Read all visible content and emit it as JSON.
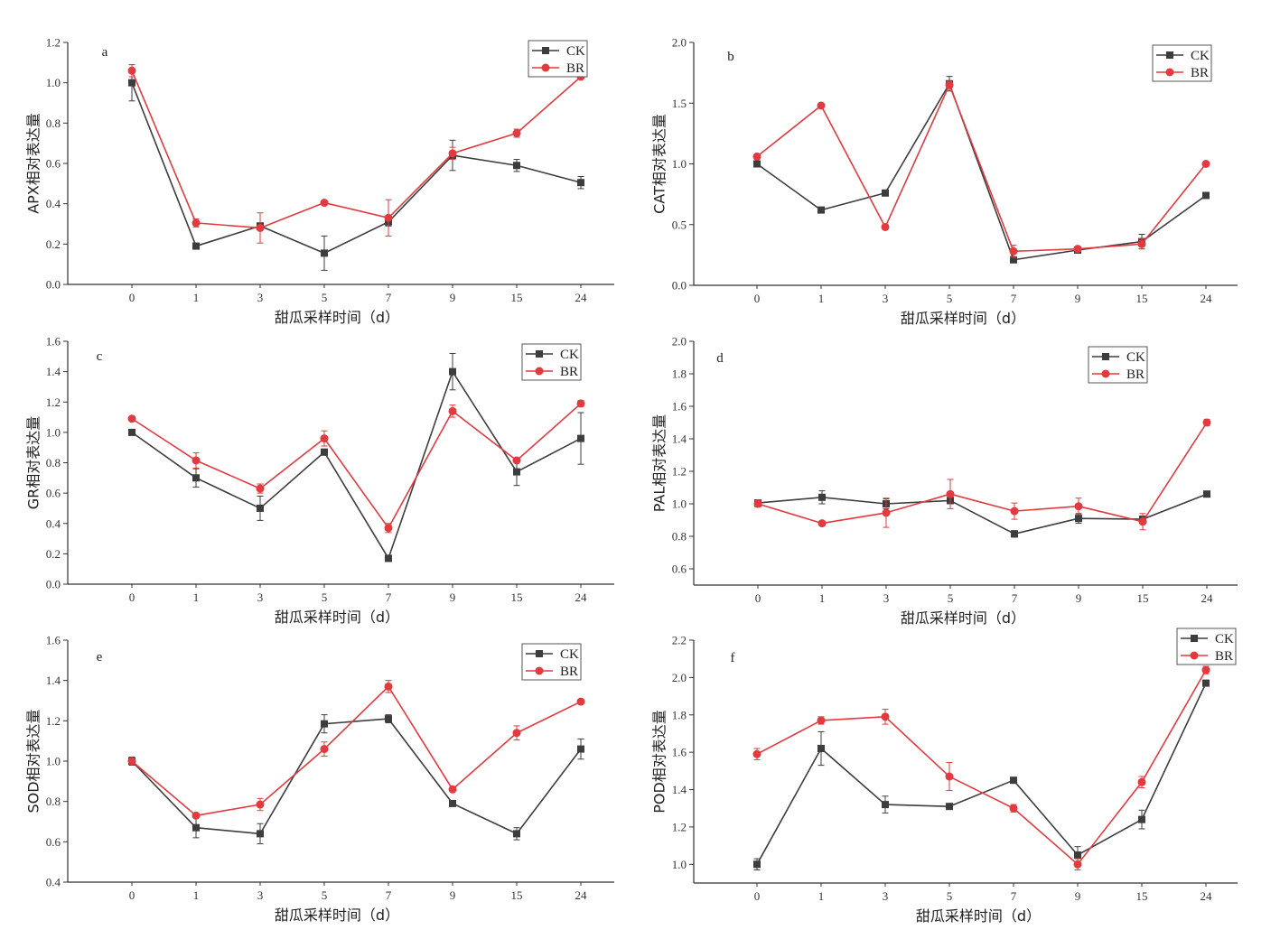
{
  "chart_data": [
    {
      "panel_label": "a",
      "type": "line",
      "xlabel": "甜瓜采样时间（d）",
      "ylabel": "APX相对表达量",
      "categories": [
        "0",
        "1",
        "3",
        "5",
        "7",
        "9",
        "15",
        "24"
      ],
      "ylim": [
        0,
        1.2
      ],
      "ytick_labels": [
        "0.0",
        "0.2",
        "0.4",
        "0.6",
        "0.8",
        "1.0",
        "1.2"
      ],
      "grid": false,
      "legend": "top-right",
      "series": [
        {
          "name": "CK",
          "color": "#3d3d3d",
          "marker": "square",
          "values": [
            1.0,
            0.19,
            0.29,
            0.155,
            0.31,
            0.64,
            0.59,
            0.505
          ],
          "errors": [
            0.09,
            0.01,
            0.01,
            0.085,
            0.02,
            0.075,
            0.03,
            0.03
          ]
        },
        {
          "name": "BR",
          "color": "#e23a3f",
          "marker": "circle",
          "values": [
            1.06,
            0.305,
            0.28,
            0.405,
            0.33,
            0.65,
            0.75,
            1.03
          ],
          "errors": [
            0.03,
            0.02,
            0.075,
            0.01,
            0.09,
            0.03,
            0.02,
            0.01
          ]
        }
      ]
    },
    {
      "panel_label": "b",
      "type": "line",
      "xlabel": "甜瓜采样时间（d）",
      "ylabel": "CAT相对表达量",
      "categories": [
        "0",
        "1",
        "3",
        "5",
        "7",
        "9",
        "15",
        "24"
      ],
      "ylim": [
        0,
        2.0
      ],
      "ytick_labels": [
        "0.0",
        "0.5",
        "1.0",
        "1.5",
        "2.0"
      ],
      "grid": false,
      "legend": "top-right",
      "series": [
        {
          "name": "CK",
          "color": "#3d3d3d",
          "marker": "square",
          "values": [
            1.0,
            0.62,
            0.76,
            1.66,
            0.21,
            0.29,
            0.36,
            0.74
          ],
          "errors": [
            0.02,
            0.01,
            0.02,
            0.06,
            0.01,
            0.01,
            0.06,
            0.01
          ]
        },
        {
          "name": "BR",
          "color": "#e23a3f",
          "marker": "circle",
          "values": [
            1.06,
            1.48,
            0.48,
            1.65,
            0.28,
            0.3,
            0.34,
            1.0
          ],
          "errors": [
            0.01,
            0.01,
            0.02,
            0.03,
            0.05,
            0.01,
            0.04,
            0.02
          ]
        }
      ]
    },
    {
      "panel_label": "c",
      "type": "line",
      "xlabel": "甜瓜采样时间（d）",
      "ylabel": "GR相对表达量",
      "categories": [
        "0",
        "1",
        "3",
        "5",
        "7",
        "9",
        "15",
        "24"
      ],
      "ylim": [
        0,
        1.6
      ],
      "ytick_labels": [
        "0.0",
        "0.2",
        "0.4",
        "0.6",
        "0.8",
        "1.0",
        "1.2",
        "1.4",
        "1.6"
      ],
      "grid": false,
      "legend": "top-right",
      "series": [
        {
          "name": "CK",
          "color": "#3d3d3d",
          "marker": "square",
          "values": [
            1.0,
            0.7,
            0.5,
            0.87,
            0.17,
            1.4,
            0.74,
            0.96
          ],
          "errors": [
            0.01,
            0.06,
            0.08,
            0.02,
            0.02,
            0.12,
            0.09,
            0.17
          ]
        },
        {
          "name": "BR",
          "color": "#e23a3f",
          "marker": "circle",
          "values": [
            1.09,
            0.815,
            0.63,
            0.96,
            0.37,
            1.14,
            0.815,
            1.19
          ],
          "errors": [
            0.01,
            0.05,
            0.03,
            0.05,
            0.03,
            0.04,
            0.01,
            0.02
          ]
        }
      ]
    },
    {
      "panel_label": "d",
      "type": "line",
      "xlabel": "甜瓜采样时间（d）",
      "ylabel": "PAL相对表达量",
      "categories": [
        "0",
        "1",
        "3",
        "5",
        "7",
        "9",
        "15",
        "24"
      ],
      "ylim": [
        0.5,
        2.0
      ],
      "ytick_labels": [
        "0.6",
        "0.8",
        "1.0",
        "1.2",
        "1.4",
        "1.6",
        "1.8",
        "2.0"
      ],
      "grid": false,
      "legend": "top-right",
      "series": [
        {
          "name": "CK",
          "color": "#3d3d3d",
          "marker": "square",
          "values": [
            1.005,
            1.04,
            1.0,
            1.02,
            0.815,
            0.91,
            0.905,
            1.06
          ],
          "errors": [
            0.01,
            0.04,
            0.03,
            0.02,
            0.02,
            0.03,
            0.02,
            0.01
          ]
        },
        {
          "name": "BR",
          "color": "#e23a3f",
          "marker": "circle",
          "values": [
            1.0,
            0.88,
            0.945,
            1.06,
            0.955,
            0.985,
            0.89,
            1.5
          ],
          "errors": [
            0.02,
            0.01,
            0.09,
            0.09,
            0.05,
            0.05,
            0.05,
            0.02
          ]
        }
      ]
    },
    {
      "panel_label": "e",
      "type": "line",
      "xlabel": "甜瓜采样时间（d）",
      "ylabel": "SOD相对表达量",
      "categories": [
        "0",
        "1",
        "3",
        "5",
        "7",
        "9",
        "15",
        "24"
      ],
      "ylim": [
        0.4,
        1.6
      ],
      "ytick_labels": [
        "0.4",
        "0.6",
        "0.8",
        "1.0",
        "1.2",
        "1.4",
        "1.6"
      ],
      "grid": false,
      "legend": "top-right",
      "series": [
        {
          "name": "CK",
          "color": "#3d3d3d",
          "marker": "square",
          "values": [
            1.0,
            0.67,
            0.64,
            1.185,
            1.21,
            0.79,
            0.64,
            1.06
          ],
          "errors": [
            0.02,
            0.05,
            0.05,
            0.045,
            0.02,
            0.01,
            0.03,
            0.05
          ]
        },
        {
          "name": "BR",
          "color": "#e23a3f",
          "marker": "circle",
          "values": [
            1.0,
            0.73,
            0.785,
            1.06,
            1.37,
            0.86,
            1.14,
            1.295
          ],
          "errors": [
            0.01,
            0.01,
            0.03,
            0.035,
            0.03,
            0.01,
            0.035,
            0.01
          ]
        }
      ]
    },
    {
      "panel_label": "f",
      "type": "line",
      "xlabel": "甜瓜采样时间（d）",
      "ylabel": "POD相对表达量",
      "categories": [
        "0",
        "1",
        "3",
        "5",
        "7",
        "9",
        "15",
        "24"
      ],
      "ylim": [
        0.9,
        2.2
      ],
      "ytick_labels": [
        "1.0",
        "1.2",
        "1.4",
        "1.6",
        "1.8",
        "2.0",
        "2.2"
      ],
      "grid": false,
      "legend": "top-right",
      "series": [
        {
          "name": "CK",
          "color": "#3d3d3d",
          "marker": "square",
          "values": [
            1.0,
            1.62,
            1.32,
            1.31,
            1.45,
            1.05,
            1.24,
            1.97
          ],
          "errors": [
            0.03,
            0.09,
            0.045,
            0.01,
            0.01,
            0.045,
            0.05,
            0.01
          ]
        },
        {
          "name": "BR",
          "color": "#e23a3f",
          "marker": "circle",
          "values": [
            1.59,
            1.77,
            1.79,
            1.47,
            1.3,
            1.0,
            1.44,
            2.04
          ],
          "errors": [
            0.03,
            0.02,
            0.04,
            0.075,
            0.02,
            0.03,
            0.03,
            0.02
          ]
        }
      ]
    }
  ]
}
